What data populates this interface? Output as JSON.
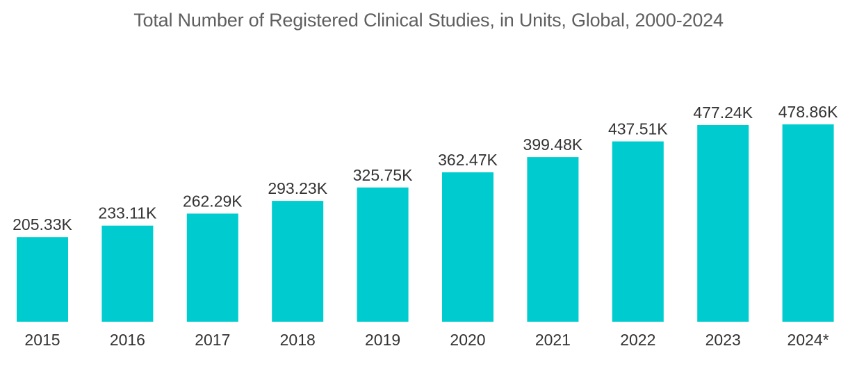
{
  "chart_data": {
    "type": "bar",
    "title": "Total Number of Registered Clinical Studies, in Units, Global, 2000-2024",
    "categories": [
      "2015",
      "2016",
      "2017",
      "2018",
      "2019",
      "2020",
      "2021",
      "2022",
      "2023",
      "2024*"
    ],
    "values": [
      205.33,
      233.11,
      262.29,
      293.23,
      325.75,
      362.47,
      399.48,
      437.51,
      477.24,
      478.86
    ],
    "value_labels": [
      "205.33K",
      "233.11K",
      "262.29K",
      "293.23K",
      "325.75K",
      "362.47K",
      "399.48K",
      "437.51K",
      "477.24K",
      "478.86K"
    ],
    "unit": "thousand",
    "xlabel": "",
    "ylabel": "",
    "ylim": [
      0,
      478.86
    ],
    "grid": false,
    "legend": "none",
    "bar_color": "#00ccd0"
  }
}
